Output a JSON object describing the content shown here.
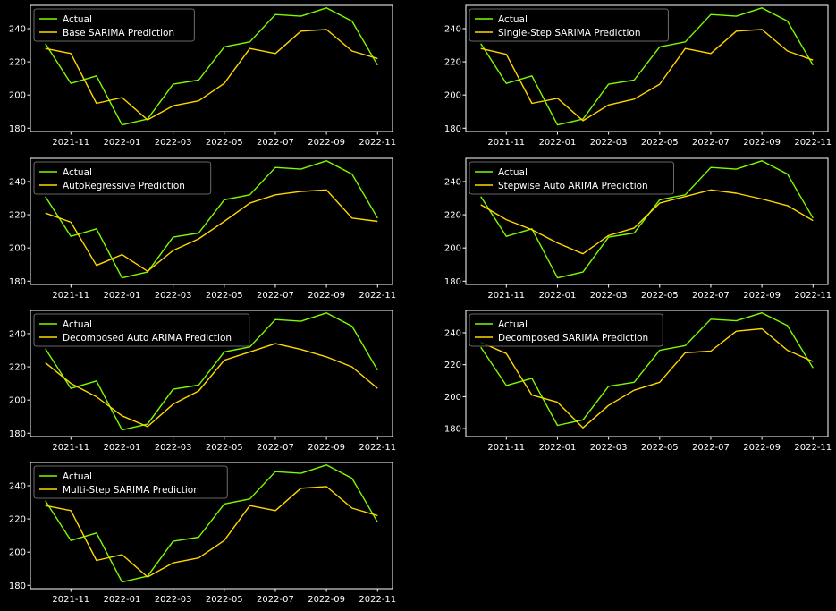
{
  "colors": {
    "background": "#000000",
    "axes_frame": "#ffffff",
    "actual": "#7cfc00",
    "prediction": "#ffd700",
    "legend_frame": "#888888"
  },
  "x_ticks": [
    "2021-11",
    "2022-01",
    "2022-03",
    "2022-05",
    "2022-07",
    "2022-09",
    "2022-11"
  ],
  "y_ticks": [
    180,
    200,
    220,
    240
  ],
  "chart_data": [
    {
      "type": "line",
      "x": [
        "2021-10",
        "2021-11",
        "2021-12",
        "2022-01",
        "2022-02",
        "2022-03",
        "2022-04",
        "2022-05",
        "2022-06",
        "2022-07",
        "2022-08",
        "2022-09",
        "2022-10",
        "2022-11"
      ],
      "ylim": [
        178,
        254
      ],
      "legend_loc": "upper left",
      "series": [
        {
          "name": "Actual",
          "values": [
            231,
            207,
            211.5,
            182,
            185.5,
            206.5,
            209,
            229,
            232,
            248.5,
            247.5,
            252.5,
            244.5,
            218
          ]
        },
        {
          "name": "Base SARIMA Prediction",
          "values": [
            228,
            225,
            195,
            198.5,
            185,
            193.5,
            196.5,
            207,
            228,
            225,
            238.5,
            239.5,
            226.5,
            222
          ]
        }
      ]
    },
    {
      "type": "line",
      "x": [
        "2021-10",
        "2021-11",
        "2021-12",
        "2022-01",
        "2022-02",
        "2022-03",
        "2022-04",
        "2022-05",
        "2022-06",
        "2022-07",
        "2022-08",
        "2022-09",
        "2022-10",
        "2022-11"
      ],
      "ylim": [
        178,
        254
      ],
      "legend_loc": "upper left",
      "series": [
        {
          "name": "Actual",
          "values": [
            231,
            207,
            211.5,
            182,
            185.5,
            206.5,
            209,
            229,
            232,
            248.5,
            247.5,
            252.5,
            244.5,
            218
          ]
        },
        {
          "name": "Single-Step SARIMA Prediction",
          "values": [
            228,
            224.5,
            195,
            198,
            184.5,
            194,
            197.5,
            206.5,
            228,
            225,
            238.5,
            239.5,
            226.5,
            221
          ]
        }
      ]
    },
    {
      "type": "line",
      "x": [
        "2021-10",
        "2021-11",
        "2021-12",
        "2022-01",
        "2022-02",
        "2022-03",
        "2022-04",
        "2022-05",
        "2022-06",
        "2022-07",
        "2022-08",
        "2022-09",
        "2022-10",
        "2022-11"
      ],
      "ylim": [
        178,
        254
      ],
      "legend_loc": "upper left",
      "series": [
        {
          "name": "Actual",
          "values": [
            231,
            207,
            211.5,
            182,
            185.5,
            206.5,
            209,
            229,
            232,
            248.5,
            247.5,
            252.5,
            244.5,
            218
          ]
        },
        {
          "name": "AutoRegressive Prediction",
          "values": [
            221,
            215.5,
            189.5,
            196,
            186,
            198.5,
            205.5,
            216,
            227,
            232,
            234,
            235,
            218,
            216
          ]
        }
      ]
    },
    {
      "type": "line",
      "x": [
        "2021-10",
        "2021-11",
        "2021-12",
        "2022-01",
        "2022-02",
        "2022-03",
        "2022-04",
        "2022-05",
        "2022-06",
        "2022-07",
        "2022-08",
        "2022-09",
        "2022-10",
        "2022-11"
      ],
      "ylim": [
        178,
        254
      ],
      "legend_loc": "upper left",
      "series": [
        {
          "name": "Actual",
          "values": [
            231,
            207,
            211.5,
            182,
            185.5,
            206.5,
            209,
            229,
            232,
            248.5,
            247.5,
            252.5,
            244.5,
            218
          ]
        },
        {
          "name": "Stepwise Auto ARIMA Prediction",
          "values": [
            226,
            217,
            211,
            203,
            196.5,
            207.5,
            212,
            227,
            231,
            235,
            233,
            229.5,
            225.5,
            216.5
          ]
        }
      ]
    },
    {
      "type": "line",
      "x": [
        "2021-10",
        "2021-11",
        "2021-12",
        "2022-01",
        "2022-02",
        "2022-03",
        "2022-04",
        "2022-05",
        "2022-06",
        "2022-07",
        "2022-08",
        "2022-09",
        "2022-10",
        "2022-11"
      ],
      "ylim": [
        178,
        254
      ],
      "legend_loc": "upper left",
      "series": [
        {
          "name": "Actual",
          "values": [
            231,
            207,
            211.5,
            182,
            185.5,
            206.5,
            209,
            229,
            232,
            248.5,
            247.5,
            252.5,
            244.5,
            218
          ]
        },
        {
          "name": "Decomposed Auto ARIMA Prediction",
          "values": [
            222.5,
            210,
            202,
            190.5,
            184,
            197.5,
            205.5,
            224,
            229,
            234,
            230.5,
            226,
            220,
            207
          ]
        }
      ]
    },
    {
      "type": "line",
      "x": [
        "2021-10",
        "2021-11",
        "2021-12",
        "2022-01",
        "2022-02",
        "2022-03",
        "2022-04",
        "2022-05",
        "2022-06",
        "2022-07",
        "2022-08",
        "2022-09",
        "2022-10",
        "2022-11"
      ],
      "ylim": [
        175,
        254
      ],
      "legend_loc": "upper left",
      "series": [
        {
          "name": "Actual",
          "values": [
            231,
            207,
            211.5,
            182,
            185.5,
            206.5,
            209,
            229,
            232,
            248.5,
            247.5,
            252.5,
            244.5,
            218
          ]
        },
        {
          "name": "Decomposed SARIMA Prediction",
          "values": [
            234,
            227,
            201,
            196.5,
            180.5,
            194.5,
            204,
            209,
            227.5,
            228.5,
            241,
            242.5,
            229,
            222
          ]
        }
      ]
    },
    {
      "type": "line",
      "x": [
        "2021-10",
        "2021-11",
        "2021-12",
        "2022-01",
        "2022-02",
        "2022-03",
        "2022-04",
        "2022-05",
        "2022-06",
        "2022-07",
        "2022-08",
        "2022-09",
        "2022-10",
        "2022-11"
      ],
      "ylim": [
        178,
        254
      ],
      "legend_loc": "upper left",
      "series": [
        {
          "name": "Actual",
          "values": [
            231,
            207,
            211.5,
            182,
            185.5,
            206.5,
            209,
            229,
            232,
            248.5,
            247.5,
            252.5,
            244.5,
            218
          ]
        },
        {
          "name": "Multi-Step SARIMA Prediction",
          "values": [
            228,
            225,
            195,
            198.5,
            185,
            193.5,
            196.5,
            207,
            228,
            225,
            238.5,
            239.5,
            226.5,
            222
          ]
        }
      ]
    }
  ]
}
